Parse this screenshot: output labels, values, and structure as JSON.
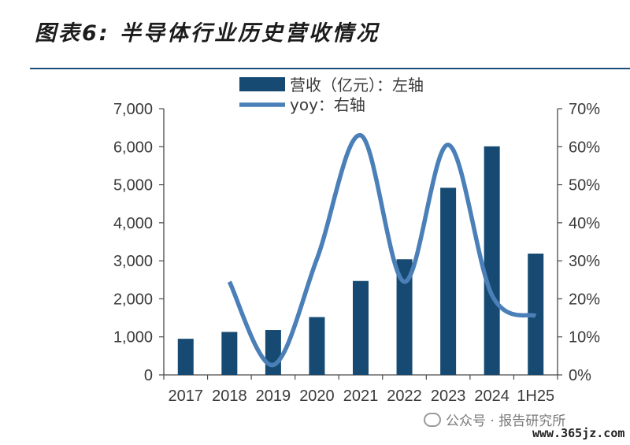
{
  "header": {
    "title": "图表6: 半导体行业历史营收情况"
  },
  "chart_data": {
    "type": "bar",
    "categories": [
      "2017",
      "2018",
      "2019",
      "2020",
      "2021",
      "2022",
      "2023",
      "2024",
      "1H25"
    ],
    "series": [
      {
        "name": "营收（亿元）：左轴",
        "type": "bar",
        "axis": "left",
        "values": [
          950,
          1130,
          1180,
          1520,
          2470,
          3040,
          4920,
          6010,
          3190
        ]
      },
      {
        "name": "yoy：右轴",
        "type": "line",
        "axis": "right",
        "smooth": true,
        "x": [
          "2018",
          "2019",
          "2020",
          "2021",
          "2022",
          "2023",
          "2024",
          "1H25"
        ],
        "values": [
          24.5,
          2.6,
          30.5,
          63.0,
          24.5,
          60.5,
          21.0,
          15.5
        ]
      }
    ],
    "left_axis": {
      "ylim": [
        0,
        7000
      ],
      "ticks": [
        "0",
        "1,000",
        "2,000",
        "3,000",
        "4,000",
        "5,000",
        "6,000",
        "7,000"
      ]
    },
    "right_axis": {
      "ylim": [
        0,
        70
      ],
      "ticks": [
        "0%",
        "10%",
        "20%",
        "30%",
        "40%",
        "50%",
        "60%",
        "70%"
      ]
    },
    "legend": {
      "placement": "top-center"
    },
    "grid": false,
    "colors": {
      "bar": "#164a72",
      "line": "#4a7fb8"
    }
  },
  "watermark": {
    "text": "公众号 · 报告研究所",
    "site": "www.365jz.com"
  }
}
